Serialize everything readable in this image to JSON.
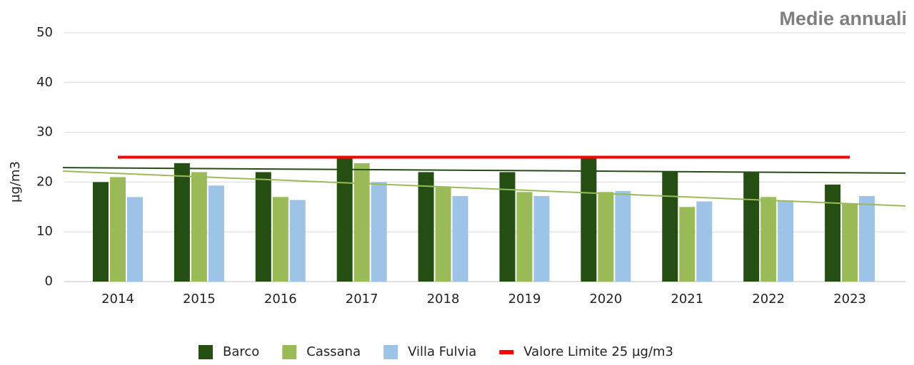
{
  "chart_data": {
    "type": "bar",
    "title": "Medie annuali",
    "y_label": "µg/m3",
    "categories": [
      "2014",
      "2015",
      "2016",
      "2017",
      "2018",
      "2019",
      "2020",
      "2021",
      "2022",
      "2023"
    ],
    "series": [
      {
        "name": "Barco",
        "color": "#254e13",
        "values": [
          20,
          23.8,
          22,
          25,
          22,
          22,
          25,
          22,
          22,
          19.5
        ]
      },
      {
        "name": "Cassana",
        "color": "#9bbb59",
        "values": [
          21,
          22,
          17,
          23.8,
          19,
          18,
          18,
          15,
          17,
          15.7
        ]
      },
      {
        "name": "Villa Fulvia",
        "color": "#9dc3e6",
        "values": [
          17,
          19.3,
          16.4,
          20,
          17.2,
          17.2,
          18.2,
          16.1,
          16.3,
          17.2
        ]
      }
    ],
    "limit": {
      "name": "Valore Limite 25 µg/m3",
      "color": "#ff0000",
      "value": 25
    },
    "trend_lines": [
      {
        "color": "#254e13",
        "values": [
          22.9,
          21.8
        ]
      },
      {
        "color": "#9bbb59",
        "values": [
          22.2,
          15.2
        ]
      }
    ],
    "ylim": [
      0,
      50
    ],
    "yticks": [
      0,
      10,
      20,
      30,
      40,
      50
    ],
    "grid": true
  }
}
